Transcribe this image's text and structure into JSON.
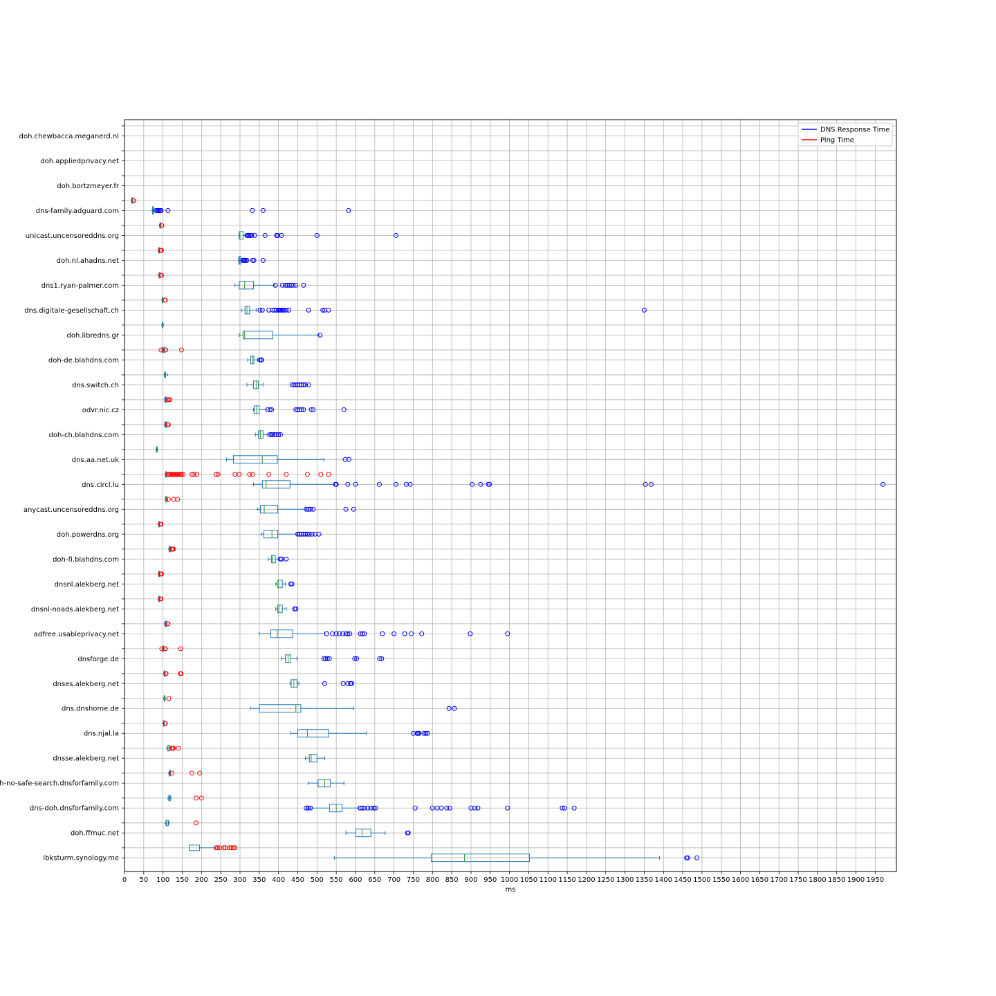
{
  "chart_data": {
    "type": "boxplot",
    "orientation": "horizontal",
    "xlabel": "ms",
    "xlim": [
      0,
      2005
    ],
    "x_ticks": [
      0,
      50,
      100,
      150,
      200,
      250,
      300,
      350,
      400,
      450,
      500,
      550,
      600,
      650,
      700,
      750,
      800,
      850,
      900,
      950,
      1000,
      1050,
      1100,
      1150,
      1200,
      1250,
      1300,
      1350,
      1400,
      1450,
      1500,
      1550,
      1600,
      1650,
      1700,
      1750,
      1800,
      1850,
      1900,
      1950
    ],
    "grid": true,
    "legend": {
      "placement": "top-right",
      "entries": [
        {
          "label": "DNS Response Time",
          "color": "#0000ff"
        },
        {
          "label": "Ping Time",
          "color": "#ff0000"
        }
      ]
    },
    "colors": {
      "dns_outlier": "#0000ff",
      "ping_outlier": "#ff0000",
      "box": "#1f77b4",
      "median": "#2ca02c"
    },
    "categories": [
      "doh.chewbacca.meganerd.nl",
      "doh.appliedprivacy.net",
      "doh.bortzmeyer.fr",
      "dns-family.adguard.com",
      "unicast.uncensoreddns.org",
      "doh.nl.ahadns.net",
      "dns1.ryan-palmer.com",
      "dns.digitale-gesellschaft.ch",
      "doh.libredns.gr",
      "doh-de.blahdns.com",
      "dns.switch.ch",
      "odvr.nic.cz",
      "doh-ch.blahdns.com",
      "dns.aa.net.uk",
      "dns.circl.lu",
      "anycast.uncensoreddns.org",
      "doh.powerdns.org",
      "doh-fi.blahdns.com",
      "dnsnl.alekberg.net",
      "dnsnl-noads.alekberg.net",
      "adfree.usableprivacy.net",
      "dnsforge.de",
      "dnses.alekberg.net",
      "dns.dnshome.de",
      "dns.njal.la",
      "dnsse.alekberg.net",
      "doh-no-safe-search.dnsforfamily.com",
      "dns-doh.dnsforfamily.com",
      "doh.ffmuc.net",
      "ibksturm.synology.me"
    ],
    "series": [
      {
        "name": "DNS Response Time",
        "boxes": [
          null,
          null,
          null,
          {
            "whislo": 72,
            "q1": 73,
            "med": 74,
            "q3": 75,
            "whishi": 77,
            "fliers": [
              82,
              85,
              88,
              90,
              93,
              95,
              113,
              332,
              360,
              582
            ]
          },
          {
            "whislo": 297,
            "q1": 298,
            "med": 300,
            "q3": 308,
            "whishi": 315,
            "fliers": [
              318,
              320,
              323,
              326,
              330,
              338,
              365,
              395,
              398,
              408,
              500,
              705
            ]
          },
          {
            "whislo": 296,
            "q1": 297,
            "med": 299,
            "q3": 302,
            "whishi": 305,
            "fliers": [
              307,
              310,
              312,
              315,
              318,
              333,
              336,
              360
            ]
          },
          {
            "whislo": 285,
            "q1": 298,
            "med": 312,
            "q3": 335,
            "whishi": 390,
            "fliers": [
              392,
              410,
              418,
              423,
              428,
              433,
              438,
              445,
              465
            ]
          },
          {
            "whislo": 303,
            "q1": 313,
            "med": 318,
            "q3": 325,
            "whishi": 342,
            "fliers": [
              352,
              358,
              375,
              385,
              390,
              395,
              400,
              403,
              405,
              408,
              412,
              415,
              420,
              427,
              478,
              515,
              520,
              530,
              1350
            ]
          },
          {
            "whislo": 298,
            "q1": 308,
            "med": 312,
            "q3": 385,
            "whishi": 505,
            "fliers": [
              508
            ]
          },
          {
            "whislo": 320,
            "q1": 328,
            "med": 332,
            "q3": 336,
            "whishi": 345,
            "fliers": [
              352,
              355,
              356
            ]
          },
          {
            "whislo": 318,
            "q1": 335,
            "med": 342,
            "q3": 348,
            "whishi": 360,
            "fliers": [
              435,
              440,
              445,
              450,
              455,
              460,
              465,
              470,
              478
            ]
          },
          {
            "whislo": 335,
            "q1": 337,
            "med": 343,
            "q3": 350,
            "whishi": 368,
            "fliers": [
              372,
              378,
              382,
              445,
              450,
              455,
              460,
              465,
              485,
              490,
              570
            ]
          },
          {
            "whislo": 340,
            "q1": 348,
            "med": 353,
            "q3": 360,
            "whishi": 372,
            "fliers": [
              378,
              382,
              385,
              390,
              395,
              400,
              405
            ]
          },
          {
            "whislo": 265,
            "q1": 283,
            "med": 358,
            "q3": 397,
            "whishi": 518,
            "fliers": [
              573,
              583
            ]
          },
          {
            "whislo": 335,
            "q1": 358,
            "med": 368,
            "q3": 430,
            "whishi": 545,
            "fliers": [
              548,
              550,
              580,
              600,
              662,
              705,
              732,
              742,
              903,
              925,
              945,
              948,
              1353,
              1368,
              1970
            ]
          },
          {
            "whislo": 345,
            "q1": 353,
            "med": 363,
            "q3": 398,
            "whishi": 470,
            "fliers": [
              472,
              478,
              483,
              490,
              575,
              595
            ]
          },
          {
            "whislo": 355,
            "q1": 362,
            "med": 383,
            "q3": 398,
            "whishi": 448,
            "fliers": [
              450,
              455,
              460,
              465,
              470,
              475,
              480,
              487,
              495,
              505
            ]
          },
          {
            "whislo": 373,
            "q1": 382,
            "med": 385,
            "q3": 392,
            "whishi": 400,
            "fliers": [
              405,
              408,
              420
            ]
          },
          {
            "whislo": 393,
            "q1": 397,
            "med": 400,
            "q3": 410,
            "whishi": 418,
            "fliers": [
              432,
              435
            ]
          },
          {
            "whislo": 393,
            "q1": 398,
            "med": 401,
            "q3": 410,
            "whishi": 420,
            "fliers": [
              442,
              445
            ]
          },
          {
            "whislo": 350,
            "q1": 380,
            "med": 397,
            "q3": 437,
            "whishi": 520,
            "fliers": [
              525,
              540,
              550,
              558,
              567,
              575,
              580,
              585,
              613,
              618,
              623,
              670,
              700,
              728,
              745,
              772,
              898,
              995
            ]
          },
          {
            "whislo": 407,
            "q1": 418,
            "med": 425,
            "q3": 432,
            "whishi": 448,
            "fliers": [
              518,
              522,
              527,
              532,
              598,
              603,
              663,
              668
            ]
          },
          {
            "whislo": 430,
            "q1": 433,
            "med": 440,
            "q3": 448,
            "whishi": 453,
            "fliers": [
              520,
              568,
              580,
              587,
              590
            ]
          },
          {
            "whislo": 327,
            "q1": 350,
            "med": 445,
            "q3": 458,
            "whishi": 595,
            "fliers": [
              843,
              857
            ]
          },
          {
            "whislo": 432,
            "q1": 450,
            "med": 475,
            "q3": 530,
            "whishi": 628,
            "fliers": [
              750,
              760,
              762,
              765,
              778,
              783,
              787
            ]
          },
          {
            "whislo": 470,
            "q1": 480,
            "med": 485,
            "q3": 500,
            "whishi": 520,
            "fliers": []
          },
          {
            "whislo": 477,
            "q1": 503,
            "med": 520,
            "q3": 535,
            "whishi": 570,
            "fliers": []
          },
          {
            "whislo": 473,
            "q1": 533,
            "med": 550,
            "q3": 565,
            "whishi": 608,
            "fliers": [
              472,
              477,
              483,
              612,
              617,
              623,
              632,
              640,
              648,
              652,
              755,
              800,
              812,
              823,
              837,
              845,
              900,
              910,
              918,
              995,
              1137,
              1143,
              1168
            ]
          },
          {
            "whislo": 575,
            "q1": 600,
            "med": 617,
            "q3": 640,
            "whishi": 677,
            "fliers": [
              735,
              737
            ]
          },
          {
            "whislo": 545,
            "q1": 797,
            "med": 883,
            "q3": 1052,
            "whishi": 1390,
            "fliers": [
              1460,
              1463,
              1487
            ]
          }
        ]
      },
      {
        "name": "Ping Time",
        "boxes": [
          null,
          null,
          null,
          {
            "whislo": 18,
            "q1": 19,
            "med": 20,
            "q3": 21,
            "whishi": 22,
            "fliers": [
              23,
              24
            ]
          },
          {
            "whislo": 91,
            "q1": 92,
            "med": 93,
            "q3": 94,
            "whishi": 95,
            "fliers": [
              96,
              97
            ]
          },
          {
            "whislo": 88,
            "q1": 89,
            "med": 90,
            "q3": 91,
            "whishi": 92,
            "fliers": [
              93,
              95,
              96
            ]
          },
          {
            "whislo": 89,
            "q1": 90,
            "med": 91,
            "q3": 92,
            "whishi": 93,
            "fliers": [
              94,
              96
            ]
          },
          {
            "whislo": 97,
            "q1": 98,
            "med": 99,
            "q3": 100,
            "whishi": 101,
            "fliers": [
              105,
              106
            ]
          },
          {
            "whislo": 97,
            "q1": 98,
            "med": 99,
            "q3": 100,
            "whishi": 101,
            "fliers": []
          },
          {
            "whislo": 97,
            "q1": 98,
            "med": 100,
            "q3": 103,
            "whishi": 105,
            "fliers": [
              95,
              106,
              107,
              148
            ]
          },
          {
            "whislo": 103,
            "q1": 104,
            "med": 105,
            "q3": 107,
            "whishi": 112,
            "fliers": []
          },
          {
            "whislo": 104,
            "q1": 105,
            "med": 107,
            "q3": 109,
            "whishi": 110,
            "fliers": [
              112,
              115,
              118
            ]
          },
          {
            "whislo": 104,
            "q1": 105,
            "med": 107,
            "q3": 109,
            "whishi": 110,
            "fliers": [
              112,
              114
            ]
          },
          {
            "whislo": 82,
            "q1": 83,
            "med": 84,
            "q3": 85,
            "whishi": 86,
            "fliers": []
          },
          {
            "whislo": 106,
            "q1": 107,
            "med": 108,
            "q3": 109,
            "whishi": 110,
            "fliers": [
              112,
              115,
              118,
              121,
              124,
              127,
              130,
              133,
              136,
              139,
              142,
              145,
              148,
              152,
              175,
              180,
              188,
              238,
              243,
              287,
              298,
              325,
              333,
              375,
              420,
              475,
              510,
              530
            ]
          },
          {
            "whislo": 106,
            "q1": 107,
            "med": 108,
            "q3": 110,
            "whishi": 112,
            "fliers": [
              114,
              128,
              138
            ]
          },
          {
            "whislo": 88,
            "q1": 89,
            "med": 90,
            "q3": 91,
            "whishi": 92,
            "fliers": [
              93,
              95
            ]
          },
          {
            "whislo": 115,
            "q1": 116,
            "med": 118,
            "q3": 120,
            "whishi": 121,
            "fliers": [
              123,
              125,
              127
            ]
          },
          {
            "whislo": 88,
            "q1": 89,
            "med": 90,
            "q3": 91,
            "whishi": 92,
            "fliers": [
              93,
              95,
              96
            ]
          },
          {
            "whislo": 88,
            "q1": 89,
            "med": 90,
            "q3": 91,
            "whishi": 92,
            "fliers": [
              93,
              95
            ]
          },
          {
            "whislo": 104,
            "q1": 105,
            "med": 107,
            "q3": 109,
            "whishi": 110,
            "fliers": [
              112,
              113
            ]
          },
          {
            "whislo": 98,
            "q1": 99,
            "med": 100,
            "q3": 101,
            "whishi": 103,
            "fliers": [
              97,
              105,
              106,
              146
            ]
          },
          {
            "whislo": 102,
            "q1": 103,
            "med": 104,
            "q3": 105,
            "whishi": 106,
            "fliers": [
              107,
              108,
              145,
              147
            ]
          },
          {
            "whislo": 102,
            "q1": 103,
            "med": 104,
            "q3": 105,
            "whishi": 106,
            "fliers": [
              115
            ]
          },
          {
            "whislo": 100,
            "q1": 101,
            "med": 102,
            "q3": 103,
            "whishi": 104,
            "fliers": [
              105,
              106
            ]
          },
          {
            "whislo": 110,
            "q1": 112,
            "med": 115,
            "q3": 118,
            "whishi": 121,
            "fliers": [
              123,
              125,
              127,
              140
            ]
          },
          {
            "whislo": 115,
            "q1": 116,
            "med": 118,
            "q3": 119,
            "whishi": 120,
            "fliers": [
              123,
              175,
              195
            ]
          },
          {
            "whislo": 113,
            "q1": 115,
            "med": 117,
            "q3": 119,
            "whishi": 121,
            "fliers": [
              186,
              200
            ]
          },
          {
            "whislo": 106,
            "q1": 108,
            "med": 110,
            "q3": 114,
            "whishi": 117,
            "fliers": [
              186
            ]
          },
          {
            "whislo": 168,
            "q1": 168,
            "med": 168,
            "q3": 195,
            "whishi": 235,
            "fliers": [
              238,
              242,
              247,
              258,
              262,
              273,
              277,
              283,
              287
            ]
          }
        ]
      }
    ]
  }
}
